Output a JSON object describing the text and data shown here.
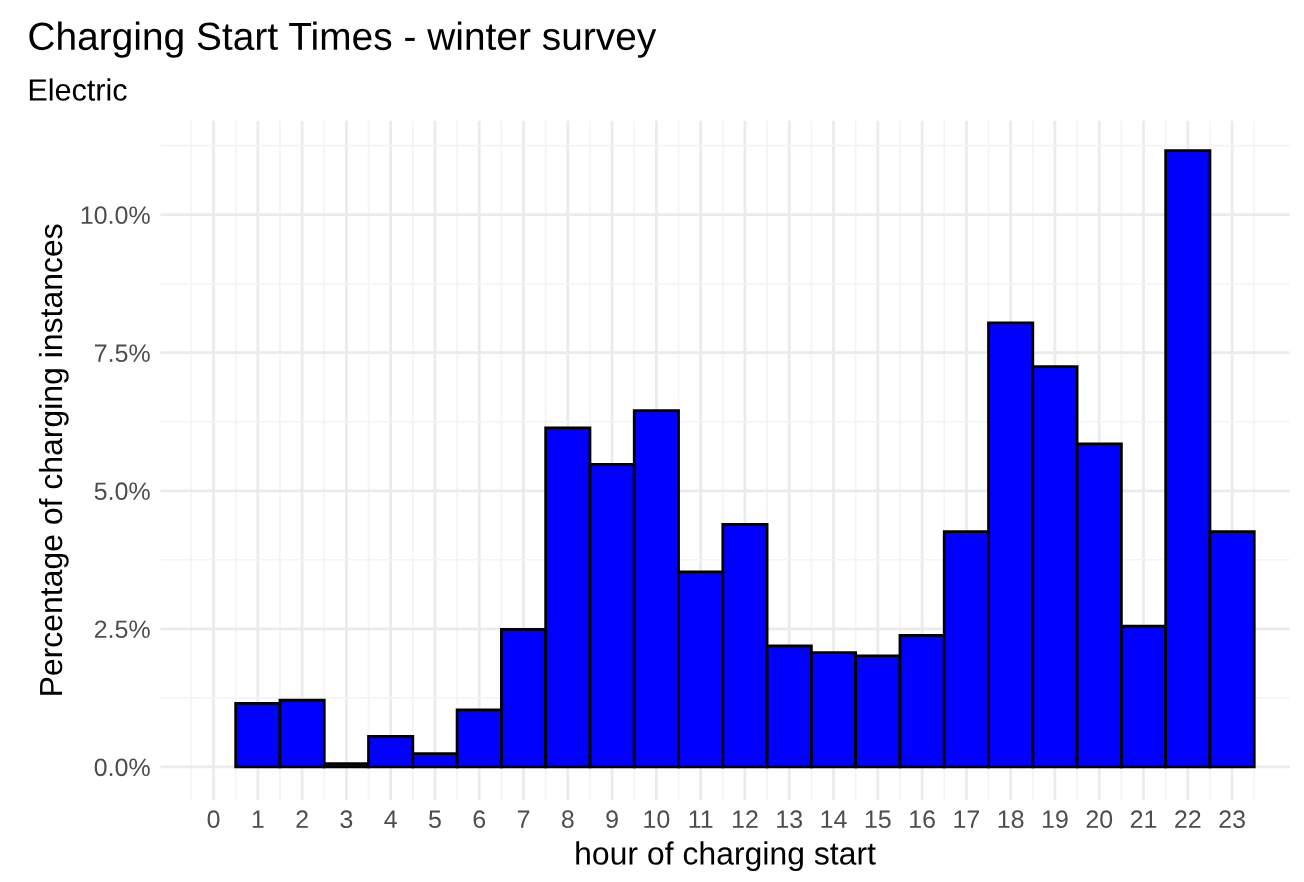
{
  "chart_data": {
    "type": "histogram",
    "title": "Charging Start Times - winter survey",
    "subtitle": "Electric",
    "xlabel": "hour of charging start",
    "ylabel": "Percentage of charging instances",
    "bins": [
      0.5,
      1.5,
      2.5,
      3.5,
      4.5,
      5.5,
      6.5,
      7.5,
      8.5,
      9.5,
      10.5,
      11.5,
      12.5,
      13.5,
      14.5,
      15.5,
      16.5,
      17.5,
      18.5,
      19.5,
      20.5,
      21.5,
      22.5,
      23.5
    ],
    "values": [
      1.15,
      1.21,
      0.06,
      0.55,
      0.24,
      1.03,
      2.49,
      6.14,
      5.48,
      6.45,
      3.53,
      4.39,
      2.19,
      2.07,
      2.01,
      2.38,
      4.26,
      8.04,
      7.25,
      5.85,
      2.55,
      11.16,
      4.26
    ],
    "color": "#0000ff",
    "xlim": [
      -1.2,
      24.3
    ],
    "xticks": [
      0,
      1,
      2,
      3,
      4,
      5,
      6,
      7,
      8,
      9,
      10,
      11,
      12,
      13,
      14,
      15,
      16,
      17,
      18,
      19,
      20,
      21,
      22,
      23
    ],
    "ylim": [
      -0.6,
      11.7
    ],
    "yticks": [
      {
        "value": 0,
        "label": "0.0%"
      },
      {
        "value": 2.5,
        "label": "2.5%"
      },
      {
        "value": 5,
        "label": "5.0%"
      },
      {
        "value": 7.5,
        "label": "7.5%"
      },
      {
        "value": 10,
        "label": "10.0%"
      }
    ],
    "grid": true
  }
}
